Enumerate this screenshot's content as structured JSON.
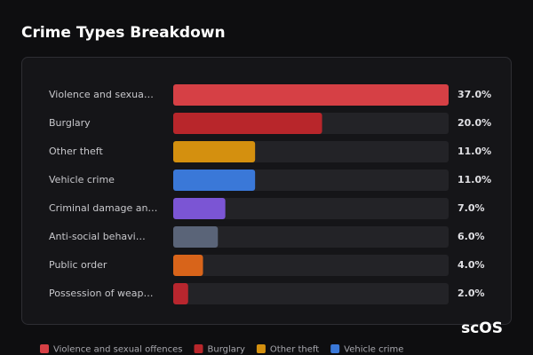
{
  "chart_data": {
    "type": "bar",
    "orientation": "horizontal",
    "title": "Crime Types Breakdown",
    "categories": [
      "Violence and sexua…",
      "Burglary",
      "Other theft",
      "Vehicle crime",
      "Criminal damage an…",
      "Anti-social behavi…",
      "Public order",
      "Possession of weap…"
    ],
    "values": [
      37,
      20,
      11,
      11,
      7,
      6,
      4,
      2
    ],
    "value_labels": [
      "37.0%",
      "20.0%",
      "11.0%",
      "11.0%",
      "7.0%",
      "6.0%",
      "4.0%",
      "2.0%"
    ],
    "colors": [
      "#d64045",
      "#b8262b",
      "#d4900f",
      "#3a78d8",
      "#7b55d4",
      "#5a6478",
      "#d8641a",
      "#b8262e"
    ],
    "xlim": [
      0,
      37
    ],
    "legend": [
      {
        "name": "Violence and sexual offences",
        "color": "#d64045"
      },
      {
        "name": "Burglary",
        "color": "#b8262b"
      },
      {
        "name": "Other theft",
        "color": "#d4900f"
      },
      {
        "name": "Vehicle crime",
        "color": "#3a78d8"
      }
    ]
  },
  "watermark": "scOS"
}
